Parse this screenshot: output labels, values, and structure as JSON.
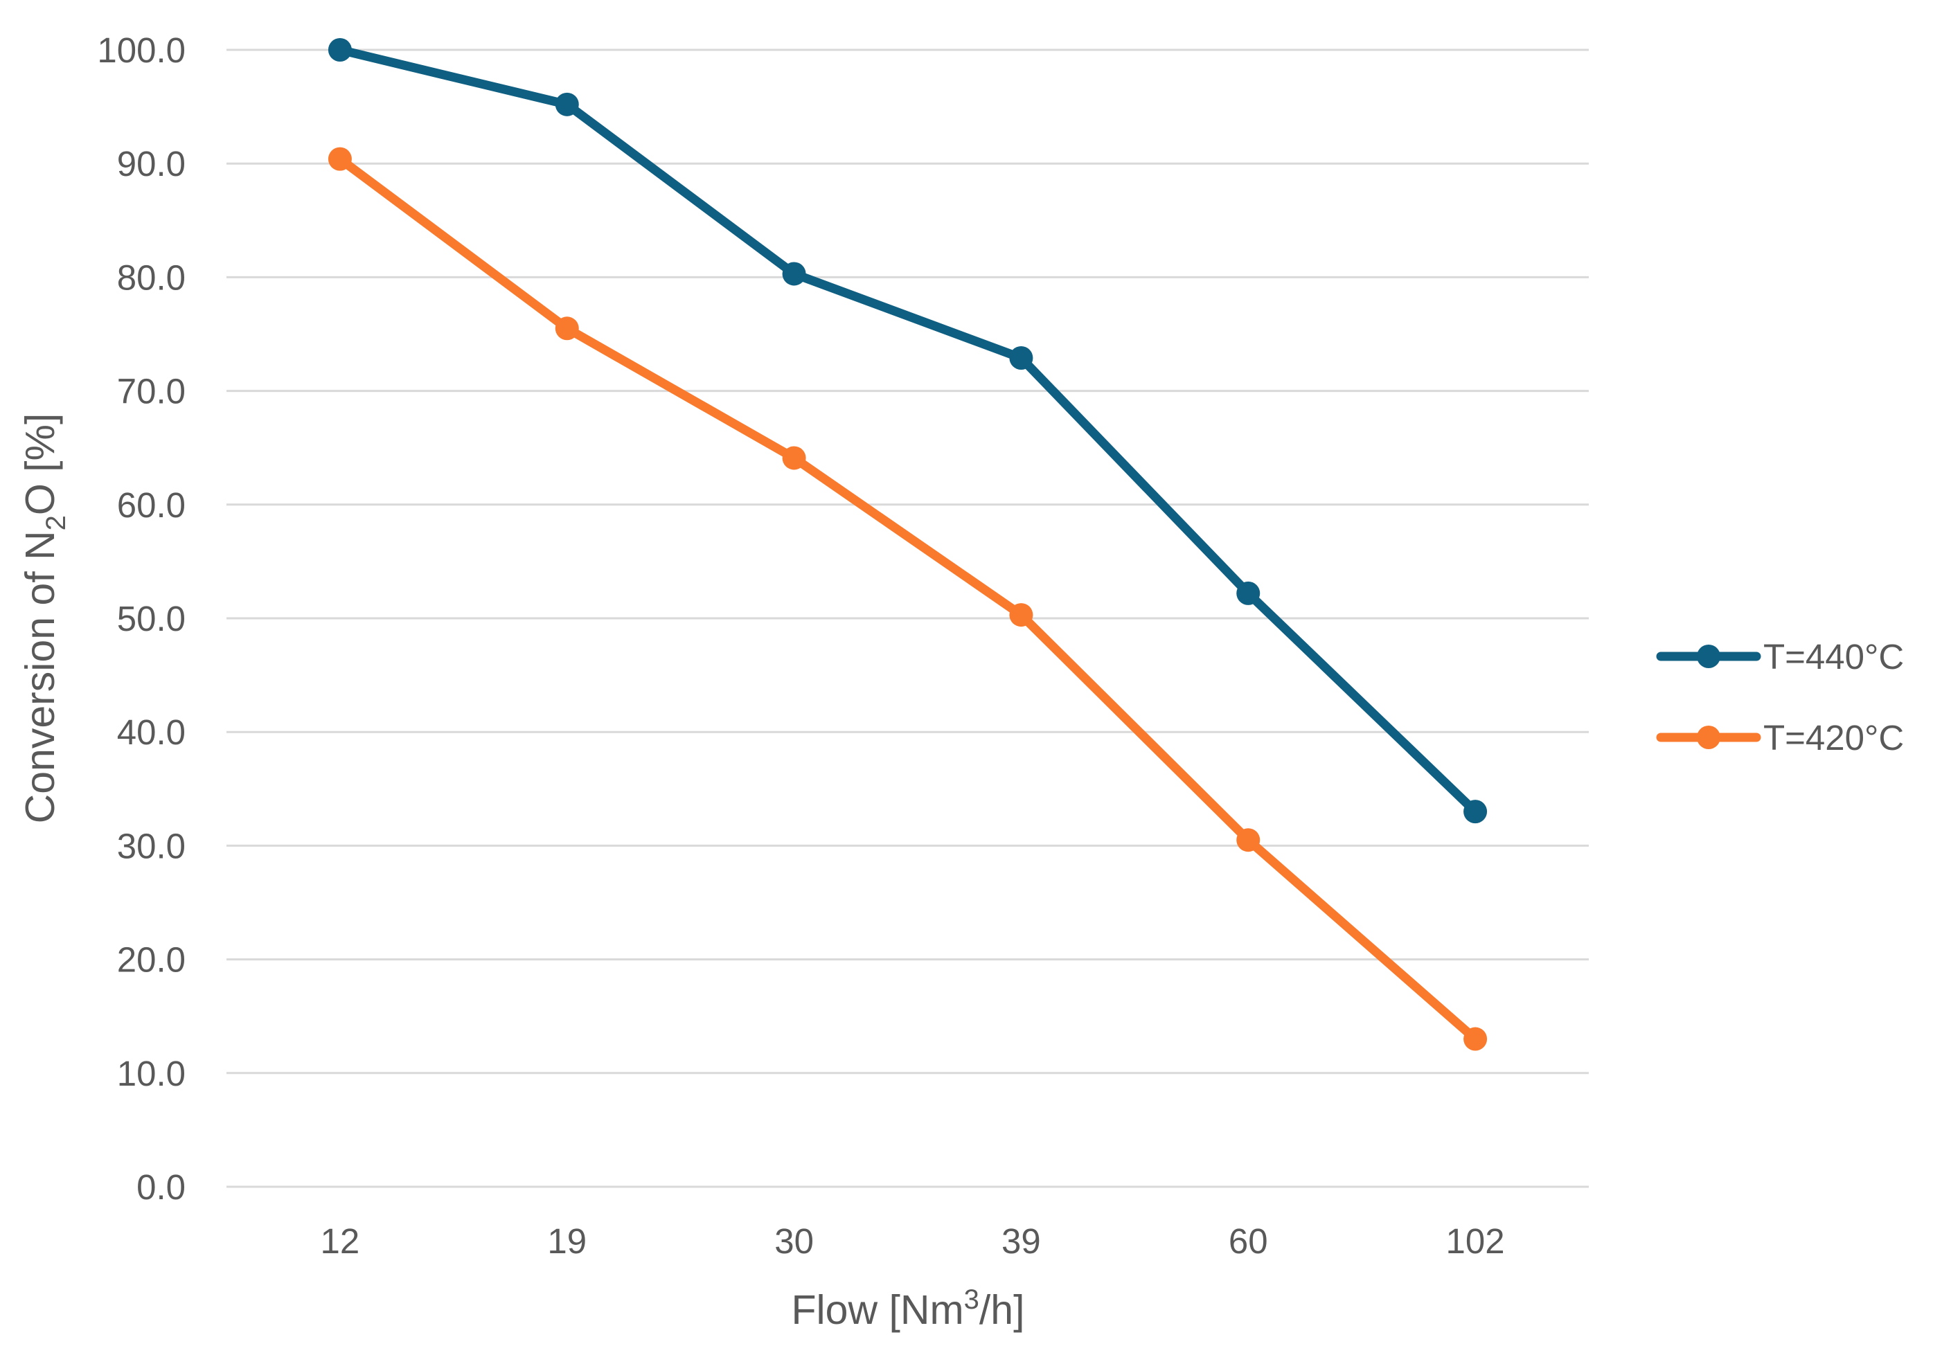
{
  "chart_data": {
    "type": "line",
    "title": "",
    "xlabel": {
      "pre": "Flow [Nm",
      "sup": "3",
      "post": "/h]"
    },
    "ylabel": {
      "pre": "Conversion of N",
      "sub": "2",
      "post": "O [%]"
    },
    "categories": [
      "12",
      "19",
      "30",
      "39",
      "60",
      "102"
    ],
    "ylim": [
      0,
      100
    ],
    "yticks": [
      "0.0",
      "10.0",
      "20.0",
      "30.0",
      "40.0",
      "50.0",
      "60.0",
      "70.0",
      "80.0",
      "90.0",
      "100.0"
    ],
    "grid": true,
    "legend_position": "right",
    "series": [
      {
        "name": "T=440°C",
        "color": "#0F5F82",
        "values": [
          100.0,
          95.2,
          80.3,
          72.9,
          52.2,
          33.0
        ]
      },
      {
        "name": "T=420°C",
        "color": "#F97A2D",
        "values": [
          90.4,
          75.5,
          64.1,
          50.3,
          30.5,
          13.0
        ]
      }
    ]
  }
}
